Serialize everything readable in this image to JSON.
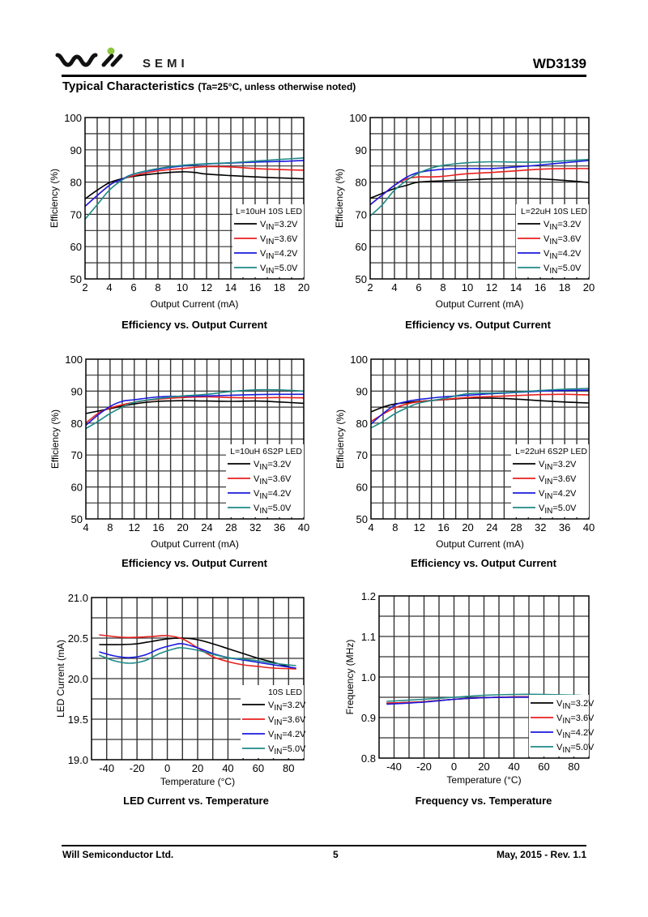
{
  "header": {
    "logo_text": "SEMI",
    "brand": "Will Semi",
    "part_number": "WD3139",
    "section_title": "Typical Characteristics",
    "section_note": "(Ta=25°C, unless otherwise noted)"
  },
  "footer": {
    "company": "Will Semiconductor Ltd.",
    "page": "5",
    "revision": "May, 2015 - Rev. 1.1"
  },
  "colors": {
    "s32": "#000000",
    "s36": "#e8201e",
    "s42": "#1a1adf",
    "s50": "#1f8a86",
    "accent_logo": "#8cc63f"
  },
  "chart_data": [
    {
      "type": "line",
      "title": "Efficiency vs. Output Current",
      "xlabel": "Output Current (mA)",
      "ylabel": "Efficiency (%)",
      "xlim": [
        2,
        20
      ],
      "ylim": [
        50,
        100
      ],
      "xgrid": 1,
      "ygrid": 5,
      "xticks": [
        2,
        4,
        6,
        8,
        10,
        12,
        14,
        16,
        18,
        20
      ],
      "yticks": [
        50,
        60,
        70,
        80,
        90,
        100
      ],
      "legend_title": "L=10uH 10S LED",
      "legend": "bottom-right",
      "grid": true,
      "series": [
        {
          "name": "VIN=3.2V",
          "color": "#000000",
          "x": [
            2,
            3,
            4,
            5,
            6,
            8,
            10,
            11,
            12,
            14,
            16,
            18,
            20
          ],
          "y": [
            74.8,
            77.5,
            79.8,
            81,
            81.8,
            82.7,
            83.2,
            83,
            82.5,
            82,
            81.6,
            81.3,
            81
          ]
        },
        {
          "name": "VIN=3.6V",
          "color": "#e8201e",
          "x": [
            2,
            4,
            5,
            6,
            8,
            10,
            12,
            14,
            16,
            18,
            20
          ],
          "y": [
            72.5,
            79,
            80.8,
            82,
            83.5,
            84.2,
            84.8,
            84.7,
            84.2,
            83.9,
            83.7
          ]
        },
        {
          "name": "VIN=4.2V",
          "color": "#1a1adf",
          "x": [
            2,
            4,
            5,
            6,
            8,
            10,
            12,
            14,
            16,
            18,
            20
          ],
          "y": [
            72.5,
            79,
            80.8,
            82.5,
            84,
            85,
            85.6,
            85.9,
            86.2,
            86.4,
            86.7
          ]
        },
        {
          "name": "VIN=5.0V",
          "color": "#1f8a86",
          "x": [
            2,
            3,
            4,
            5,
            6,
            8,
            10,
            12,
            14,
            16,
            18,
            20
          ],
          "y": [
            68.5,
            73,
            77.5,
            80.5,
            82.5,
            84.2,
            85.2,
            85.7,
            86,
            86.5,
            87,
            87.5
          ]
        }
      ]
    },
    {
      "type": "line",
      "title": "Efficiency vs. Output Current",
      "xlabel": "Output Current (mA)",
      "ylabel": "Efficiency (%)",
      "xlim": [
        2,
        20
      ],
      "ylim": [
        50,
        100
      ],
      "xgrid": 1,
      "ygrid": 5,
      "xticks": [
        2,
        4,
        6,
        8,
        10,
        12,
        14,
        16,
        18,
        20
      ],
      "yticks": [
        50,
        60,
        70,
        80,
        90,
        100
      ],
      "legend_title": "L=22uH 10S LED",
      "legend": "bottom-right",
      "grid": true,
      "series": [
        {
          "name": "VIN=3.2V",
          "color": "#000000",
          "x": [
            2,
            3,
            4,
            5,
            6,
            8,
            10,
            12,
            14,
            16,
            18,
            20
          ],
          "y": [
            75,
            76.5,
            78,
            79,
            80,
            80.4,
            80.7,
            81,
            81.1,
            81,
            80.5,
            79.9
          ]
        },
        {
          "name": "VIN=3.6V",
          "color": "#e8201e",
          "x": [
            2,
            3,
            4,
            5,
            6,
            7,
            8,
            10,
            12,
            14,
            16,
            18,
            20
          ],
          "y": [
            73,
            76,
            79,
            81,
            81.6,
            81.6,
            81.8,
            82.6,
            83,
            83.5,
            84,
            84.2,
            84.2
          ]
        },
        {
          "name": "VIN=4.2V",
          "color": "#1a1adf",
          "x": [
            2,
            3,
            4,
            5,
            6,
            8,
            10,
            12,
            14,
            16,
            18,
            20
          ],
          "y": [
            73,
            76,
            79,
            81.5,
            83,
            84,
            84.2,
            84.2,
            84.7,
            85.3,
            86,
            86.7
          ]
        },
        {
          "name": "VIN=5.0V",
          "color": "#1f8a86",
          "x": [
            2,
            3,
            4,
            5,
            6,
            7,
            8,
            10,
            12,
            14,
            16,
            18,
            20
          ],
          "y": [
            69.5,
            73,
            77.5,
            80.5,
            82.8,
            84.3,
            85.2,
            86,
            86.3,
            86.2,
            86.2,
            86.6,
            87
          ]
        }
      ]
    },
    {
      "type": "line",
      "title": "Efficiency vs. Output Current",
      "xlabel": "Output Current (mA)",
      "ylabel": "Efficiency (%)",
      "xlim": [
        4,
        40
      ],
      "ylim": [
        50,
        100
      ],
      "xgrid": 2,
      "ygrid": 5,
      "xticks": [
        4,
        8,
        12,
        16,
        20,
        24,
        28,
        32,
        36,
        40
      ],
      "yticks": [
        50,
        60,
        70,
        80,
        90,
        100
      ],
      "legend_title": "L=10uH 6S2P LED",
      "legend": "bottom-right",
      "grid": true,
      "series": [
        {
          "name": "VIN=3.2V",
          "color": "#000000",
          "x": [
            4,
            8,
            12,
            16,
            20,
            24,
            28,
            32,
            36,
            40
          ],
          "y": [
            83,
            84.5,
            86,
            86.8,
            87,
            86.9,
            86.8,
            86.9,
            86.6,
            86.2
          ]
        },
        {
          "name": "VIN=3.6V",
          "color": "#e8201e",
          "x": [
            4,
            6,
            8,
            10,
            12,
            16,
            20,
            24,
            28,
            32,
            36,
            40
          ],
          "y": [
            80,
            83,
            84.7,
            85.7,
            86.5,
            87.5,
            88,
            88.2,
            88,
            87.9,
            88,
            87.9
          ]
        },
        {
          "name": "VIN=4.2V",
          "color": "#1a1adf",
          "x": [
            4,
            6,
            8,
            10,
            12,
            16,
            20,
            24,
            28,
            32,
            36,
            40
          ],
          "y": [
            79.3,
            82.5,
            85.2,
            86.8,
            87.3,
            88.2,
            88.4,
            88.5,
            88.7,
            88.9,
            89,
            89
          ]
        },
        {
          "name": "VIN=5.0V",
          "color": "#1f8a86",
          "x": [
            4,
            6,
            8,
            10,
            12,
            16,
            20,
            24,
            28,
            32,
            36,
            40
          ],
          "y": [
            78.3,
            80.5,
            83,
            85,
            86.5,
            87.7,
            88.5,
            89,
            89.9,
            90.4,
            90.4,
            90
          ]
        }
      ]
    },
    {
      "type": "line",
      "title": "Efficiency vs. Output Current",
      "xlabel": "Output Current (mA)",
      "ylabel": "Efficiency (%)",
      "xlim": [
        4,
        40
      ],
      "ylim": [
        50,
        100
      ],
      "xgrid": 2,
      "ygrid": 5,
      "xticks": [
        4,
        8,
        12,
        16,
        20,
        24,
        28,
        32,
        36,
        40
      ],
      "yticks": [
        50,
        60,
        70,
        80,
        90,
        100
      ],
      "legend_title": "L=22uH 6S2P LED",
      "legend": "bottom-right",
      "grid": true,
      "series": [
        {
          "name": "VIN=3.2V",
          "color": "#000000",
          "x": [
            4,
            6,
            8,
            12,
            16,
            20,
            24,
            28,
            32,
            36,
            40
          ],
          "y": [
            83.5,
            85,
            86,
            86.8,
            87.3,
            87.8,
            87.8,
            87.5,
            87,
            86.6,
            86.3
          ]
        },
        {
          "name": "VIN=3.6V",
          "color": "#e8201e",
          "x": [
            4,
            6,
            8,
            10,
            12,
            16,
            20,
            24,
            28,
            32,
            36,
            40
          ],
          "y": [
            80.5,
            82.8,
            84.8,
            86,
            86.7,
            87.4,
            88,
            88.3,
            88.6,
            88.9,
            89,
            88.8
          ]
        },
        {
          "name": "VIN=4.2V",
          "color": "#1a1adf",
          "x": [
            4,
            6,
            8,
            10,
            12,
            16,
            20,
            24,
            28,
            32,
            36,
            40
          ],
          "y": [
            79.7,
            83,
            85.7,
            86.8,
            87.4,
            88.2,
            88.7,
            89.2,
            89.6,
            90,
            90.2,
            90.3
          ]
        },
        {
          "name": "VIN=5.0V",
          "color": "#1f8a86",
          "x": [
            4,
            6,
            8,
            10,
            12,
            16,
            20,
            24,
            28,
            32,
            36,
            40
          ],
          "y": [
            78.5,
            80.5,
            83,
            84.8,
            86.3,
            87.7,
            89.2,
            89.4,
            89.7,
            90.2,
            90.6,
            90.8
          ]
        }
      ]
    },
    {
      "type": "line",
      "title": "LED Current vs. Temperature",
      "xlabel": "Temperature (°C)",
      "ylabel": "LED Current (mA)",
      "xlim": [
        -50,
        90
      ],
      "ylim": [
        19.0,
        21.0
      ],
      "xgrid": 10,
      "ygrid": 0.25,
      "xticks": [
        -40,
        -20,
        0,
        20,
        40,
        60,
        80
      ],
      "yticks": [
        19.0,
        19.5,
        20.0,
        20.5,
        21.0
      ],
      "legend_title": "10S LED",
      "legend": "bottom-right",
      "grid": true,
      "series": [
        {
          "name": "VIN=3.2V",
          "color": "#000000",
          "x": [
            -45,
            -30,
            -20,
            -10,
            0,
            10,
            20,
            30,
            40,
            50,
            60,
            70,
            85
          ],
          "y": [
            20.42,
            20.42,
            20.43,
            20.46,
            20.49,
            20.5,
            20.48,
            20.43,
            20.37,
            20.31,
            20.25,
            20.2,
            20.12
          ]
        },
        {
          "name": "VIN=3.6V",
          "color": "#e8201e",
          "x": [
            -45,
            -30,
            -20,
            -10,
            0,
            10,
            20,
            30,
            40,
            50,
            60,
            70,
            85
          ],
          "y": [
            20.54,
            20.51,
            20.51,
            20.52,
            20.53,
            20.49,
            20.38,
            20.27,
            20.21,
            20.17,
            20.15,
            20.13,
            20.12
          ]
        },
        {
          "name": "VIN=4.2V",
          "color": "#1a1adf",
          "x": [
            -45,
            -35,
            -25,
            -15,
            -5,
            5,
            10,
            20,
            30,
            40,
            50,
            60,
            70,
            85
          ],
          "y": [
            20.33,
            20.28,
            20.26,
            20.29,
            20.37,
            20.42,
            20.43,
            20.38,
            20.31,
            20.26,
            20.23,
            20.2,
            20.17,
            20.13
          ]
        },
        {
          "name": "VIN=5.0V",
          "color": "#1f8a86",
          "x": [
            -45,
            -35,
            -25,
            -15,
            -5,
            5,
            10,
            20,
            30,
            40,
            50,
            60,
            70,
            85
          ],
          "y": [
            20.29,
            20.22,
            20.19,
            20.22,
            20.31,
            20.37,
            20.38,
            20.35,
            20.3,
            20.26,
            20.24,
            20.22,
            20.19,
            20.16
          ]
        }
      ]
    },
    {
      "type": "line",
      "title": "Frequency vs. Temperature",
      "xlabel": "Temperature (°C)",
      "ylabel": "Frequency (MHz)",
      "xlim": [
        -50,
        90
      ],
      "ylim": [
        0.8,
        1.2
      ],
      "xgrid": 10,
      "ygrid": 0.05,
      "xticks": [
        -40,
        -20,
        0,
        20,
        40,
        60,
        80
      ],
      "yticks": [
        0.8,
        0.9,
        1.0,
        1.1,
        1.2
      ],
      "legend_title": "",
      "legend": "bottom-right",
      "grid": true,
      "series": [
        {
          "name": "VIN=3.2V",
          "color": "#000000",
          "x": [
            -45,
            -20,
            0,
            20,
            40,
            60,
            85
          ],
          "y": [
            0.935,
            0.939,
            0.945,
            0.949,
            0.951,
            0.951,
            0.95
          ]
        },
        {
          "name": "VIN=3.6V",
          "color": "#e8201e",
          "x": [
            -45,
            -20,
            0,
            20,
            40,
            60,
            85
          ],
          "y": [
            0.936,
            0.939,
            0.945,
            0.949,
            0.951,
            0.951,
            0.95
          ]
        },
        {
          "name": "VIN=4.2V",
          "color": "#1a1adf",
          "x": [
            -45,
            -20,
            0,
            20,
            40,
            60,
            85
          ],
          "y": [
            0.933,
            0.938,
            0.945,
            0.949,
            0.95,
            0.95,
            0.949
          ]
        },
        {
          "name": "VIN=5.0V",
          "color": "#1f8a86",
          "x": [
            -45,
            -20,
            0,
            20,
            40,
            60,
            85
          ],
          "y": [
            0.94,
            0.945,
            0.95,
            0.955,
            0.957,
            0.957,
            0.955
          ]
        }
      ]
    }
  ]
}
